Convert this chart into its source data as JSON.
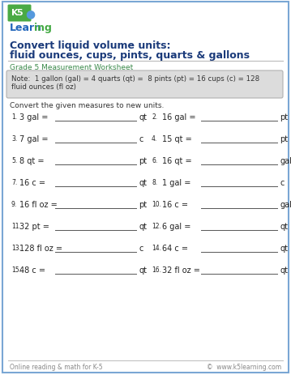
{
  "title_line1": "Convert liquid volume units:",
  "title_line2": "fluid ounces, cups, pints, quarts & gallons",
  "subtitle": "Grade 5 Measurement Worksheet",
  "note_line1": "Note:  1 gallon (gal) = 4 quarts (qt) =  8 pints (pt) = 16 cups (c) = 128",
  "note_line2": "fluid ounces (fl oz)",
  "instruction": "Convert the given measures to new units.",
  "problems": [
    {
      "num": "1.",
      "left": "3 gal =",
      "unit": "qt"
    },
    {
      "num": "2.",
      "left": "16 gal =",
      "unit": "pt"
    },
    {
      "num": "3.",
      "left": "7 gal =",
      "unit": "c"
    },
    {
      "num": "4.",
      "left": "15 qt =",
      "unit": "pt"
    },
    {
      "num": "5.",
      "left": "8 qt =",
      "unit": "pt"
    },
    {
      "num": "6.",
      "left": "16 qt =",
      "unit": "gal"
    },
    {
      "num": "7.",
      "left": "16 c =",
      "unit": "qt"
    },
    {
      "num": "8.",
      "left": "1 gal =",
      "unit": "c"
    },
    {
      "num": "9.",
      "left": "16 fl oz =",
      "unit": "pt"
    },
    {
      "num": "10.",
      "left": "16 c =",
      "unit": "gal"
    },
    {
      "num": "11.",
      "left": "32 pt =",
      "unit": "qt"
    },
    {
      "num": "12.",
      "left": "6 gal =",
      "unit": "qt"
    },
    {
      "num": "13.",
      "left": "128 fl oz =",
      "unit": "c"
    },
    {
      "num": "14.",
      "left": "64 c =",
      "unit": "qt"
    },
    {
      "num": "15.",
      "left": "48 c =",
      "unit": "qt"
    },
    {
      "num": "16.",
      "left": "32 fl oz =",
      "unit": "qt"
    }
  ],
  "footer_left": "Online reading & math for K-5",
  "footer_right": "©  www.k5learning.com",
  "border_color": "#7aa7d4",
  "title_color": "#1a3a7a",
  "subtitle_color": "#3a8a4a",
  "note_bg": "#dcdcdc",
  "note_border": "#b0b0b0",
  "text_color": "#333333",
  "problem_color": "#222222",
  "footer_color": "#888888",
  "line_color": "#555555",
  "bg_color": "#ffffff",
  "sep_color": "#bbbbbb"
}
